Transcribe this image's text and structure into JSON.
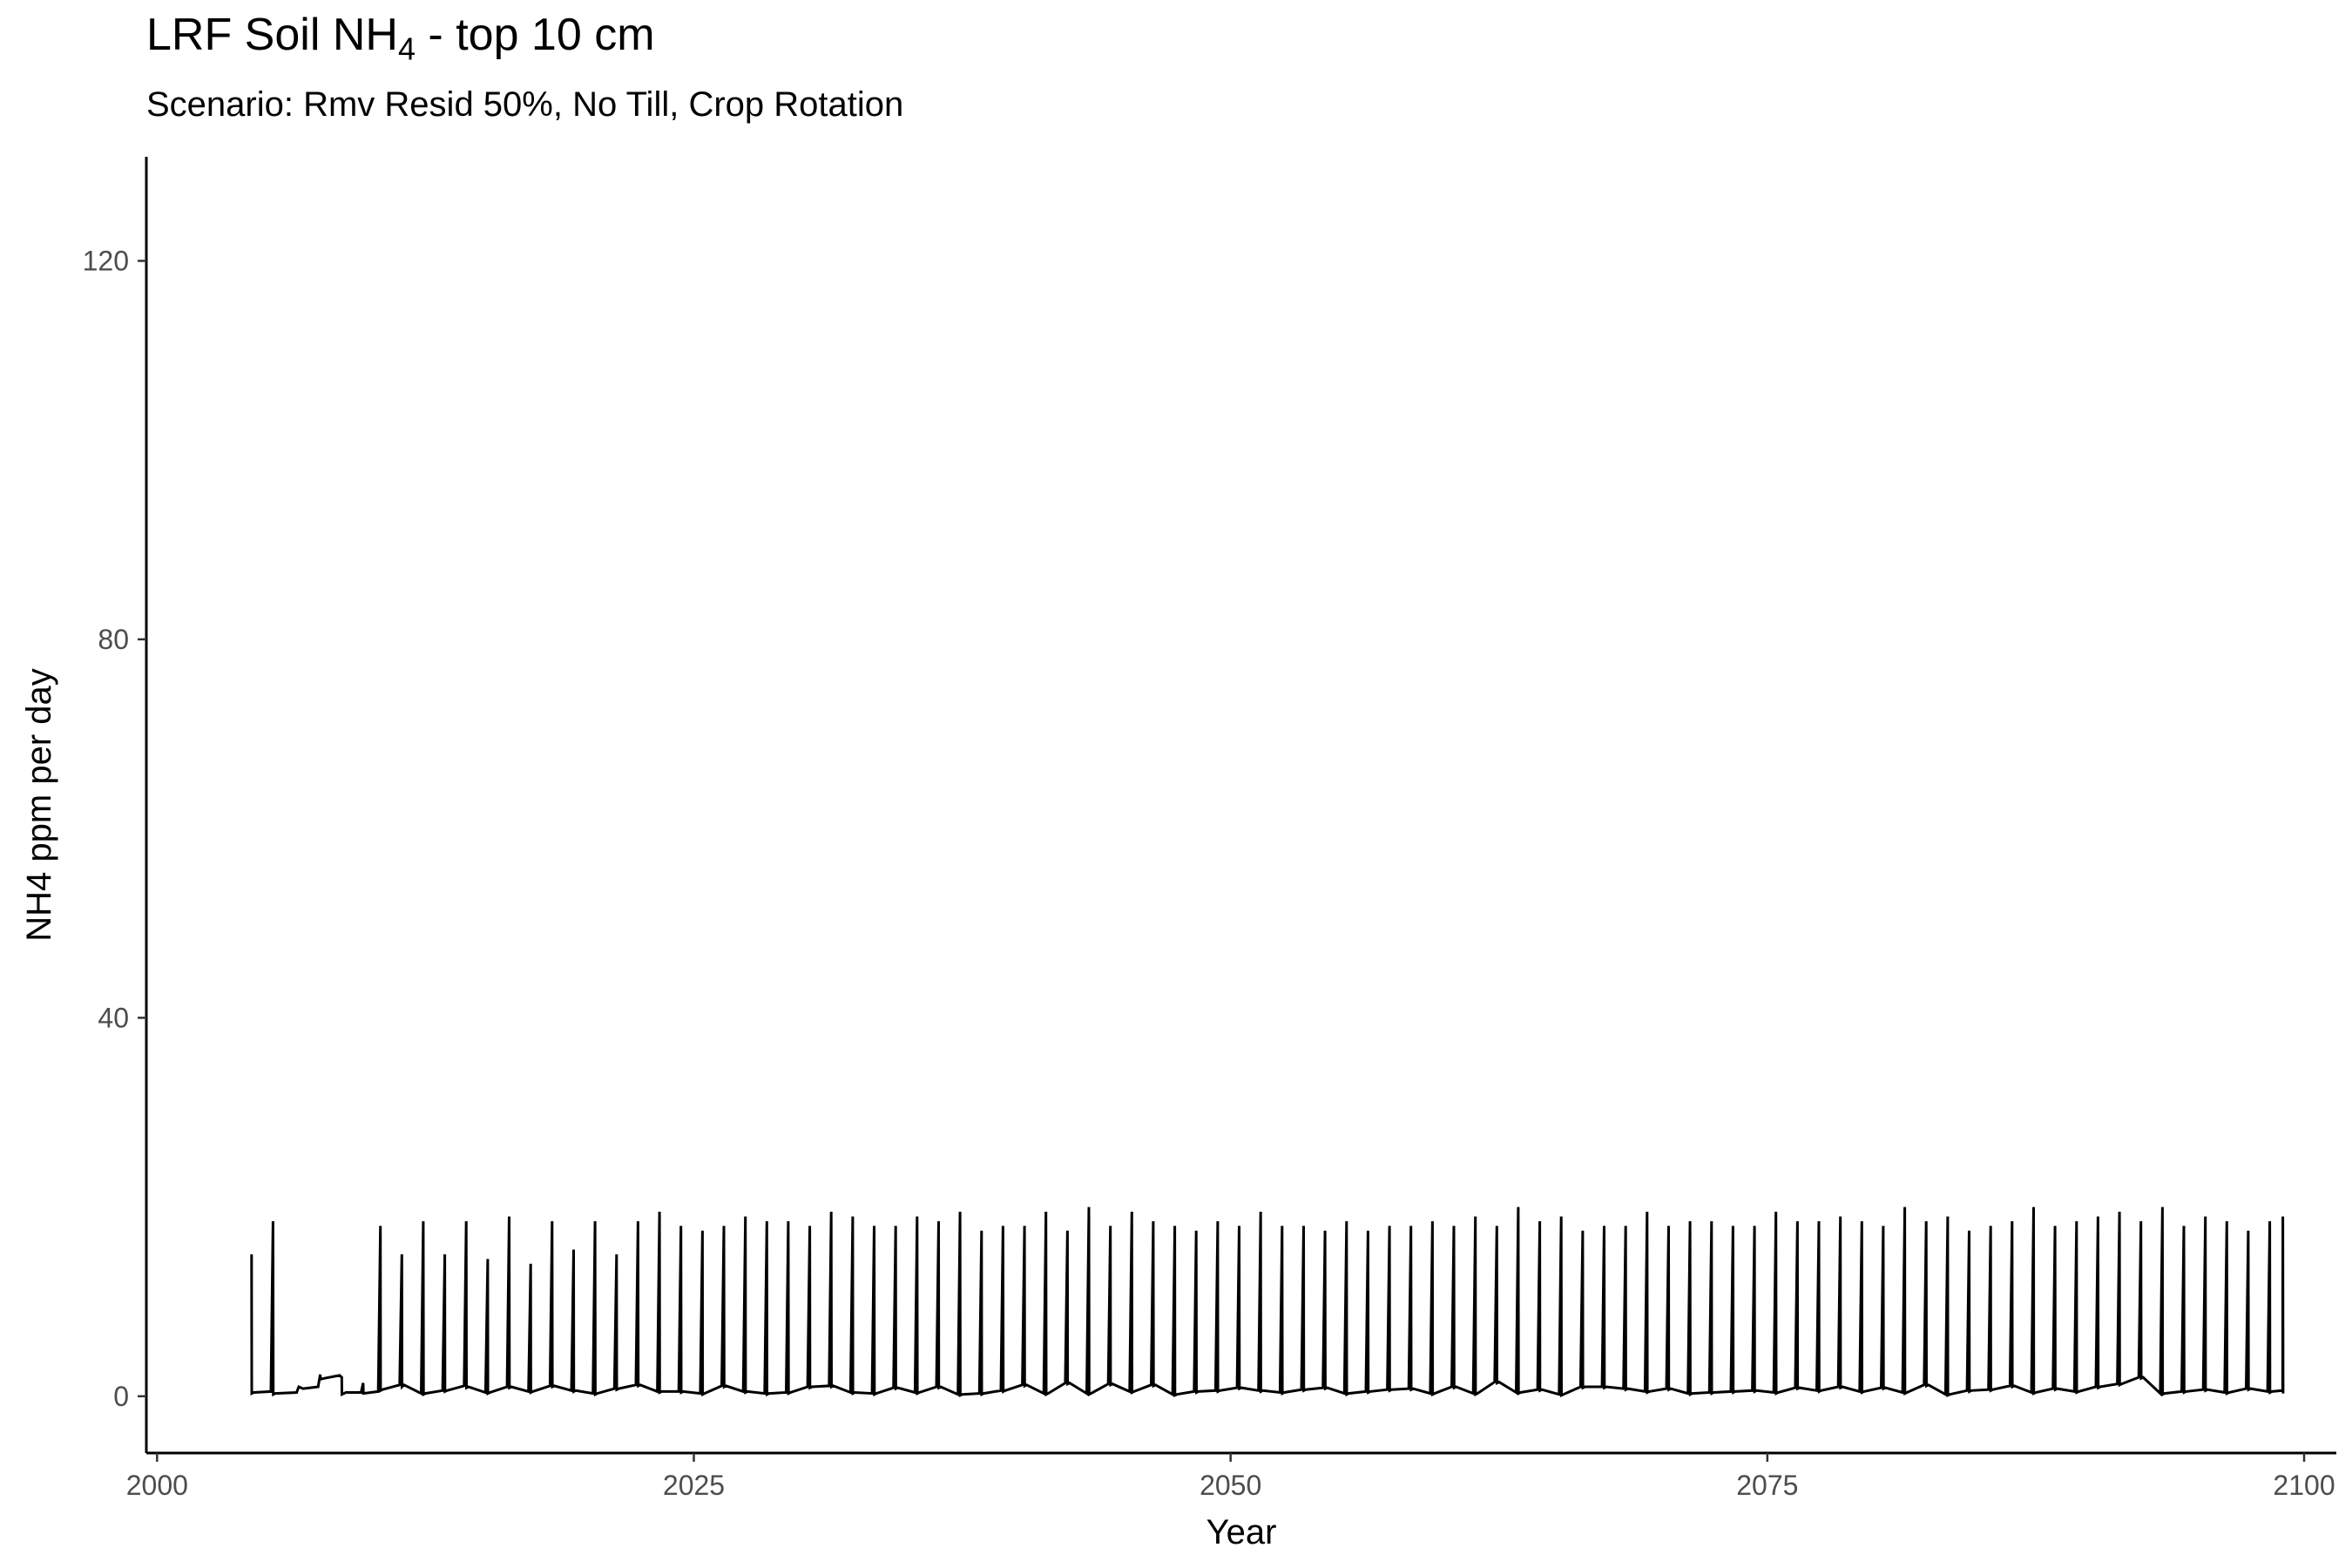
{
  "title": {
    "main": "LRF Soil NH",
    "subscript": "4",
    "suffix": " - top 10 cm"
  },
  "subtitle": "Scenario: Rmv Resid 50%, No Till, Crop Rotation",
  "chart_data": {
    "type": "line",
    "xlabel": "Year",
    "ylabel": "NH4 ppm per day",
    "xlim": [
      1999.5,
      2101.5
    ],
    "ylim": [
      -6,
      131
    ],
    "x_ticks": [
      2000,
      2025,
      2050,
      2075,
      2100
    ],
    "x_tick_labels": [
      "2000",
      "2025",
      "2050",
      "2075",
      "2100"
    ],
    "y_ticks": [
      0,
      40,
      80,
      120
    ],
    "y_tick_labels": [
      "0",
      "40",
      "80",
      "120"
    ],
    "grid": false,
    "line_color": "#000000",
    "series": [
      {
        "x": [
          2004.4,
          2004.41,
          2004.5,
          2005.3,
          2005.4,
          2005.41,
          2005.5,
          2006.5,
          2006.6,
          2006.8,
          2007.5,
          2007.6,
          2007.61,
          2007.8,
          2008.5,
          2008.6,
          2008.61,
          2008.8,
          2009.5,
          2009.6,
          2009.61,
          2010.3,
          2010.4,
          2010.41,
          2010.5,
          2011.3,
          2011.4,
          2011.41,
          2011.5,
          2012.3,
          2012.4,
          2012.41,
          2012.5,
          2013.3,
          2013.4,
          2013.41,
          2013.5,
          2014.3,
          2014.4,
          2014.41,
          2014.5,
          2015.3,
          2015.4,
          2015.41,
          2015.5,
          2016.3,
          2016.4,
          2016.41,
          2016.5,
          2017.3,
          2017.4,
          2017.41,
          2017.5,
          2018.3,
          2018.4,
          2018.41,
          2018.5,
          2019.3,
          2019.4,
          2019.41,
          2019.5,
          2020.3,
          2020.4,
          2020.41,
          2020.5,
          2021.3,
          2021.4,
          2021.41,
          2021.5,
          2022.3,
          2022.4,
          2022.41,
          2022.5,
          2023.3,
          2023.4,
          2023.41,
          2023.5,
          2024.3,
          2024.4,
          2024.41,
          2024.5,
          2025.3,
          2025.4,
          2025.41,
          2025.5,
          2026.3,
          2026.4,
          2026.41,
          2026.5,
          2027.3,
          2027.4,
          2027.41,
          2027.5,
          2028.3,
          2028.4,
          2028.41,
          2028.5,
          2029.3,
          2029.4,
          2029.41,
          2029.5,
          2030.3,
          2030.4,
          2030.41,
          2030.5,
          2031.3,
          2031.4,
          2031.41,
          2031.5,
          2032.3,
          2032.4,
          2032.41,
          2032.5,
          2033.3,
          2033.4,
          2033.41,
          2033.5,
          2034.3,
          2034.4,
          2034.41,
          2034.5,
          2035.3,
          2035.4,
          2035.41,
          2035.5,
          2036.3,
          2036.4,
          2036.41,
          2036.5,
          2037.3,
          2037.4,
          2037.41,
          2037.5,
          2038.3,
          2038.4,
          2038.41,
          2038.5,
          2039.3,
          2039.4,
          2039.41,
          2039.5,
          2040.3,
          2040.4,
          2040.41,
          2040.5,
          2041.3,
          2041.4,
          2041.41,
          2041.5,
          2042.3,
          2042.4,
          2042.41,
          2042.5,
          2043.3,
          2043.4,
          2043.41,
          2043.5,
          2044.3,
          2044.4,
          2044.41,
          2044.5,
          2045.3,
          2045.4,
          2045.41,
          2045.5,
          2046.3,
          2046.4,
          2046.41,
          2046.5,
          2047.3,
          2047.4,
          2047.41,
          2047.5,
          2048.3,
          2048.4,
          2048.41,
          2048.5,
          2049.3,
          2049.4,
          2049.41,
          2049.5,
          2050.3,
          2050.4,
          2050.41,
          2050.5,
          2051.3,
          2051.4,
          2051.41,
          2051.5,
          2052.3,
          2052.4,
          2052.41,
          2052.5,
          2053.3,
          2053.4,
          2053.41,
          2053.5,
          2054.3,
          2054.4,
          2054.41,
          2054.5,
          2055.3,
          2055.4,
          2055.41,
          2055.5,
          2056.3,
          2056.4,
          2056.41,
          2056.5,
          2057.3,
          2057.4,
          2057.41,
          2057.5,
          2058.3,
          2058.4,
          2058.41,
          2058.5,
          2059.3,
          2059.4,
          2059.41,
          2059.5,
          2060.3,
          2060.4,
          2060.41,
          2060.5,
          2061.3,
          2061.4,
          2061.41,
          2061.5,
          2062.3,
          2062.4,
          2062.41,
          2062.5,
          2063.3,
          2063.4,
          2063.41,
          2063.5,
          2064.3,
          2064.4,
          2064.41,
          2064.5,
          2065.3,
          2065.4,
          2065.41,
          2065.5,
          2066.3,
          2066.4,
          2066.41,
          2066.5,
          2067.3,
          2067.4,
          2067.41,
          2067.5,
          2068.3,
          2068.4,
          2068.41,
          2068.5,
          2069.3,
          2069.4,
          2069.41,
          2069.5,
          2070.3,
          2070.4,
          2070.41,
          2070.5,
          2071.3,
          2071.4,
          2071.41,
          2071.5,
          2072.3,
          2072.4,
          2072.41,
          2072.5,
          2073.3,
          2073.4,
          2073.41,
          2073.5,
          2074.3,
          2074.4,
          2074.41,
          2074.5,
          2075.3,
          2075.4,
          2075.41,
          2075.5,
          2076.3,
          2076.4,
          2076.41,
          2076.5,
          2077.3,
          2077.4,
          2077.41,
          2077.5,
          2078.3,
          2078.4,
          2078.41,
          2078.5,
          2079.3,
          2079.4,
          2079.41,
          2079.5,
          2080.3,
          2080.4,
          2080.41,
          2080.5,
          2081.3,
          2081.4,
          2081.41,
          2081.5,
          2082.3,
          2082.4,
          2082.41,
          2082.5,
          2083.3,
          2083.4,
          2083.41,
          2083.5,
          2084.3,
          2084.4,
          2084.41,
          2084.5,
          2085.3,
          2085.4,
          2085.41,
          2085.5,
          2086.3,
          2086.4,
          2086.41,
          2086.5,
          2087.3,
          2087.4,
          2087.41,
          2087.5,
          2088.3,
          2088.4,
          2088.41,
          2088.5,
          2089.3,
          2089.4,
          2089.41,
          2089.5,
          2090.3,
          2090.4,
          2090.41,
          2090.5,
          2091.3,
          2091.4,
          2091.41,
          2091.5,
          2092.3,
          2092.4,
          2092.41,
          2092.5,
          2093.3,
          2093.4,
          2093.41,
          2093.5,
          2094.3,
          2094.4,
          2094.41,
          2094.5,
          2095.3,
          2095.4,
          2095.41,
          2095.5,
          2096.3,
          2096.4,
          2096.41,
          2096.5,
          2097.3,
          2097.4,
          2097.41,
          2097.5,
          2098.3,
          2098.4,
          2098.41,
          2098.5,
          2099.0,
          2099.01,
          2099.02
        ],
        "y": [
          15,
          0.3,
          0.4,
          0.5,
          18.5,
          0.2,
          0.3,
          0.4,
          1.0,
          0.8,
          1.0,
          2.3,
          1.8,
          1.9,
          2.2,
          2.0,
          0.2,
          0.4,
          0.4,
          1.4,
          0.3,
          0.5,
          18,
          0.6,
          0.7,
          1.2,
          15,
          1.0,
          1.2,
          0.3,
          18.5,
          0.2,
          0.3,
          0.6,
          15,
          0.5,
          0.6,
          1.1,
          18.5,
          0.9,
          1.0,
          0.4,
          14.5,
          0.3,
          0.4,
          1.0,
          19,
          0.9,
          1.0,
          0.5,
          14,
          0.4,
          0.5,
          1.1,
          18.5,
          1.0,
          1.1,
          0.6,
          15.5,
          0.5,
          0.6,
          0.3,
          18.5,
          0.2,
          0.3,
          0.8,
          15,
          0.7,
          0.8,
          1.2,
          18.5,
          1.1,
          1.2,
          0.5,
          19.5,
          0.4,
          0.5,
          0.5,
          18,
          0.4,
          0.5,
          0.3,
          17.5,
          0.2,
          0.3,
          1.1,
          18,
          1.0,
          1.1,
          0.5,
          19,
          0.4,
          0.5,
          0.3,
          18.5,
          0.2,
          0.3,
          0.4,
          18.5,
          0.3,
          0.4,
          1.0,
          18,
          0.9,
          1.0,
          1.1,
          19.5,
          1.0,
          1.1,
          0.4,
          19,
          0.3,
          0.4,
          0.3,
          18,
          0.2,
          0.3,
          0.9,
          18,
          0.8,
          0.9,
          0.4,
          19,
          0.3,
          0.4,
          1.0,
          18.5,
          0.9,
          1.0,
          0.2,
          19.5,
          0.1,
          0.2,
          0.3,
          17.5,
          0.2,
          0.3,
          0.6,
          18,
          0.5,
          0.6,
          1.2,
          18,
          1.1,
          1.2,
          0.3,
          19.5,
          0.2,
          0.3,
          1.4,
          17.5,
          1.3,
          1.4,
          0.3,
          20,
          0.2,
          0.3,
          1.3,
          18,
          1.2,
          1.3,
          0.5,
          19.5,
          0.4,
          0.5,
          1.2,
          18.5,
          1.1,
          1.2,
          0.2,
          18,
          0.1,
          0.2,
          0.5,
          17.5,
          0.4,
          0.5,
          0.6,
          18.5,
          0.5,
          0.6,
          0.9,
          18,
          0.8,
          0.9,
          0.6,
          19.5,
          0.5,
          0.6,
          0.4,
          18,
          0.3,
          0.4,
          0.7,
          18,
          0.6,
          0.7,
          0.9,
          17.5,
          0.8,
          0.9,
          0.3,
          18.5,
          0.2,
          0.3,
          0.5,
          17.5,
          0.4,
          0.5,
          0.7,
          18,
          0.6,
          0.7,
          0.8,
          18,
          0.7,
          0.8,
          0.3,
          18.5,
          0.2,
          0.3,
          1.0,
          18,
          0.9,
          1.0,
          0.3,
          19,
          0.2,
          0.3,
          1.5,
          18,
          1.4,
          1.5,
          0.4,
          20,
          0.3,
          0.4,
          0.7,
          18.5,
          0.6,
          0.7,
          0.2,
          19,
          0.1,
          0.2,
          1.0,
          17.5,
          0.9,
          1.0,
          1.0,
          18,
          0.9,
          1.0,
          0.8,
          18,
          0.7,
          0.8,
          0.5,
          19.5,
          0.4,
          0.5,
          0.8,
          18,
          0.7,
          0.8,
          0.3,
          18.5,
          0.2,
          0.3,
          0.4,
          18.5,
          0.3,
          0.4,
          0.5,
          18,
          0.4,
          0.5,
          0.6,
          18,
          0.5,
          0.6,
          0.4,
          19.5,
          0.3,
          0.4,
          0.9,
          18.5,
          0.8,
          0.9,
          0.6,
          18.5,
          0.5,
          0.6,
          1.0,
          19,
          0.9,
          1.0,
          0.5,
          18.5,
          0.4,
          0.5,
          0.9,
          18,
          0.8,
          0.9,
          0.4,
          20,
          0.3,
          0.4,
          1.2,
          18.5,
          1.1,
          1.2,
          0.2,
          19,
          0.1,
          0.2,
          0.6,
          17.5,
          0.5,
          0.6,
          0.7,
          18,
          0.6,
          0.7,
          1.1,
          18.5,
          1.0,
          1.1,
          0.4,
          20,
          0.3,
          0.4,
          0.8,
          18,
          0.7,
          0.8,
          0.5,
          18.5,
          0.4,
          0.5,
          1.0,
          19,
          0.9,
          1.0,
          1.3,
          19.5,
          1.2,
          1.3,
          2.0,
          18.5,
          1.9,
          2.0,
          0.3,
          20,
          0.2,
          0.3,
          0.5,
          18,
          0.4,
          0.5,
          0.7,
          19,
          0.6,
          0.7,
          0.4,
          18.5,
          0.3,
          0.4,
          0.8,
          17.5,
          0.7,
          0.8,
          0.5,
          18.5,
          0.4,
          0.5,
          0.6,
          19,
          0.3
        ]
      }
    ]
  }
}
